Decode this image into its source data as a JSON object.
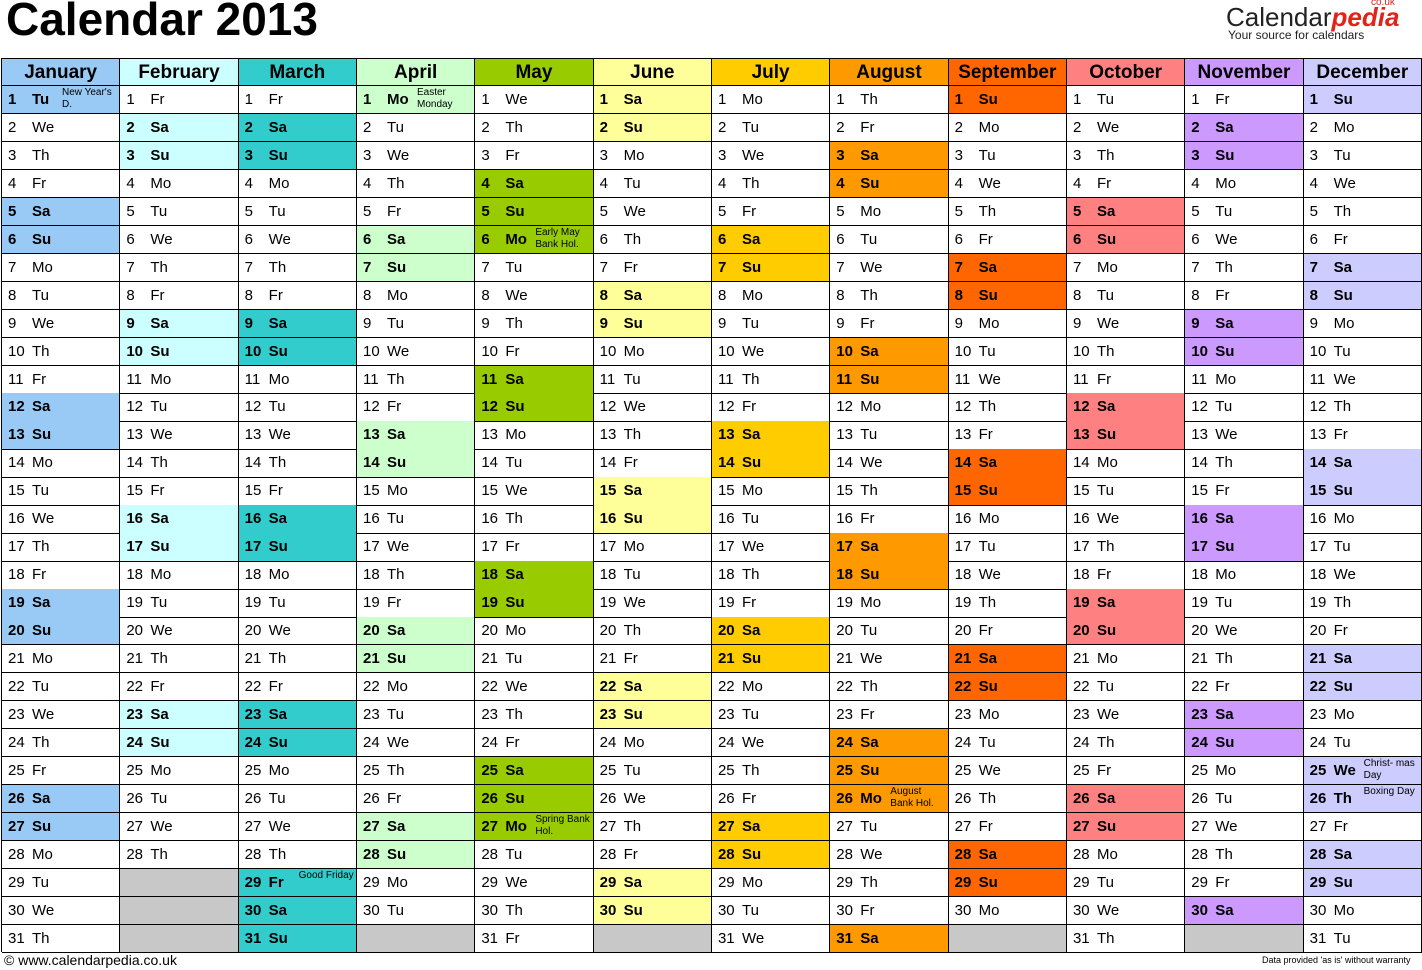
{
  "title": "Calendar 2013",
  "logo": {
    "text_a": "Calendar",
    "text_b": "pedia",
    "co": "co.uk",
    "tagline": "Your source for calendars"
  },
  "footer": {
    "url": "© www.calendarpedia.co.uk",
    "disclaimer": "Data provided 'as is' without warranty"
  },
  "colors": {
    "January": {
      "head": "#99c9f5",
      "we": "#99c9f5",
      "hol": "#99c9f5"
    },
    "February": {
      "head": "#ccffff",
      "we": "#ccffff",
      "hol": "#ccffff"
    },
    "March": {
      "head": "#33cccc",
      "we": "#33cccc",
      "hol": "#33cccc"
    },
    "April": {
      "head": "#ccffcc",
      "we": "#ccffcc",
      "hol": "#ccffcc"
    },
    "May": {
      "head": "#99cc00",
      "we": "#99cc00",
      "hol": "#99cc00"
    },
    "June": {
      "head": "#ffff99",
      "we": "#ffff99",
      "hol": "#ffff99"
    },
    "July": {
      "head": "#ffcc00",
      "we": "#ffcc00",
      "hol": "#ffcc00"
    },
    "August": {
      "head": "#ff9900",
      "we": "#ff9900",
      "hol": "#ff9900"
    },
    "September": {
      "head": "#ff6600",
      "we": "#ff6600",
      "hol": "#ff6600"
    },
    "October": {
      "head": "#ff8080",
      "we": "#ff8080",
      "hol": "#ff8080"
    },
    "November": {
      "head": "#cc99ff",
      "we": "#cc99ff",
      "hol": "#cc99ff"
    },
    "December": {
      "head": "#ccccff",
      "we": "#ccccff",
      "hol": "#ccccff"
    }
  },
  "months": [
    {
      "name": "January",
      "days": 31,
      "first_dow": 2,
      "holidays": {
        "1": "New Year's D."
      }
    },
    {
      "name": "February",
      "days": 28,
      "first_dow": 5,
      "holidays": {}
    },
    {
      "name": "March",
      "days": 31,
      "first_dow": 5,
      "holidays": {
        "29": "Good Friday"
      }
    },
    {
      "name": "April",
      "days": 30,
      "first_dow": 1,
      "holidays": {
        "1": "Easter Monday"
      }
    },
    {
      "name": "May",
      "days": 31,
      "first_dow": 3,
      "holidays": {
        "6": "Early May Bank Hol.",
        "27": "Spring Bank Hol."
      }
    },
    {
      "name": "June",
      "days": 30,
      "first_dow": 6,
      "holidays": {}
    },
    {
      "name": "July",
      "days": 31,
      "first_dow": 1,
      "holidays": {}
    },
    {
      "name": "August",
      "days": 31,
      "first_dow": 4,
      "holidays": {
        "26": "August Bank Hol."
      }
    },
    {
      "name": "September",
      "days": 30,
      "first_dow": 0,
      "holidays": {}
    },
    {
      "name": "October",
      "days": 31,
      "first_dow": 2,
      "holidays": {}
    },
    {
      "name": "November",
      "days": 30,
      "first_dow": 5,
      "holidays": {}
    },
    {
      "name": "December",
      "days": 31,
      "first_dow": 0,
      "holidays": {
        "25": "Christ- mas Day",
        "26": "Boxing Day"
      }
    }
  ],
  "weekday_abbr": [
    "Su",
    "Mo",
    "Tu",
    "We",
    "Th",
    "Fr",
    "Sa"
  ]
}
